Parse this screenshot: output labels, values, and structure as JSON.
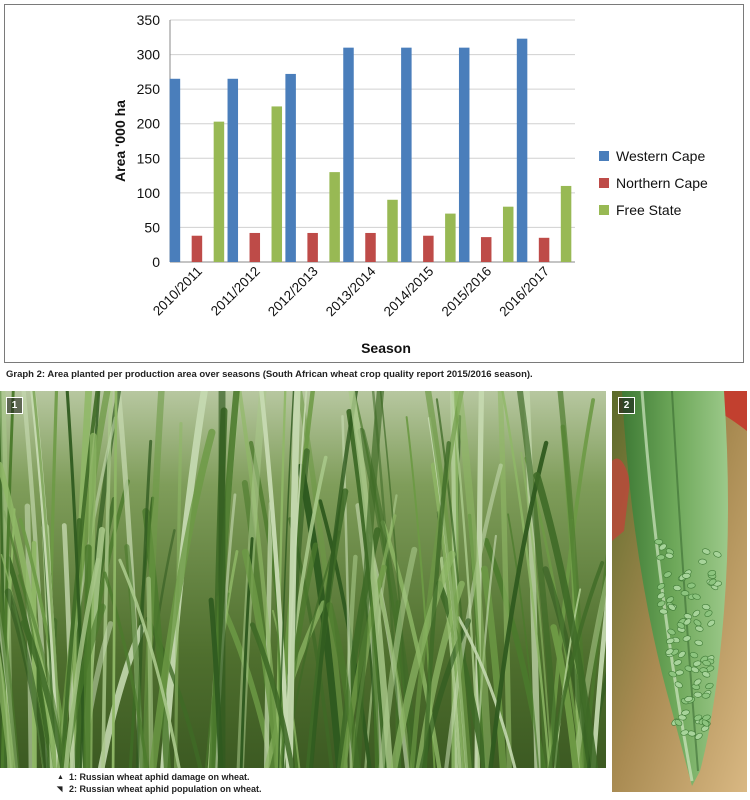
{
  "chart_data": {
    "type": "bar",
    "title": "",
    "xlabel": "Season",
    "ylabel": "Area '000 ha",
    "ylim": [
      0,
      350
    ],
    "yticks": [
      0,
      50,
      100,
      150,
      200,
      250,
      300,
      350
    ],
    "grid": true,
    "legend_position": "right",
    "categories": [
      "2010/2011",
      "2011/2012",
      "2012/2013",
      "2013/2014",
      "2014/2015",
      "2015/2016",
      "2016/2017"
    ],
    "series": [
      {
        "name": "Western Cape",
        "color": "#4a7ebb",
        "values": [
          265,
          265,
          272,
          310,
          310,
          310,
          323
        ]
      },
      {
        "name": "Northern Cape",
        "color": "#be4b48",
        "values": [
          38,
          42,
          42,
          42,
          38,
          36,
          35
        ]
      },
      {
        "name": "Free State",
        "color": "#98b954",
        "values": [
          203,
          225,
          130,
          90,
          70,
          80,
          110
        ]
      }
    ]
  },
  "caption": "Graph 2: Area planted per production area over seasons (South African wheat crop quality report 2015/2016 season).",
  "photos": {
    "photo1_number": "1",
    "photo2_number": "2"
  },
  "photo_captions": [
    {
      "arrow": "▲",
      "text": "1: Russian wheat aphid damage on wheat."
    },
    {
      "arrow": "◥",
      "text": "2: Russian wheat aphid population on wheat."
    }
  ]
}
